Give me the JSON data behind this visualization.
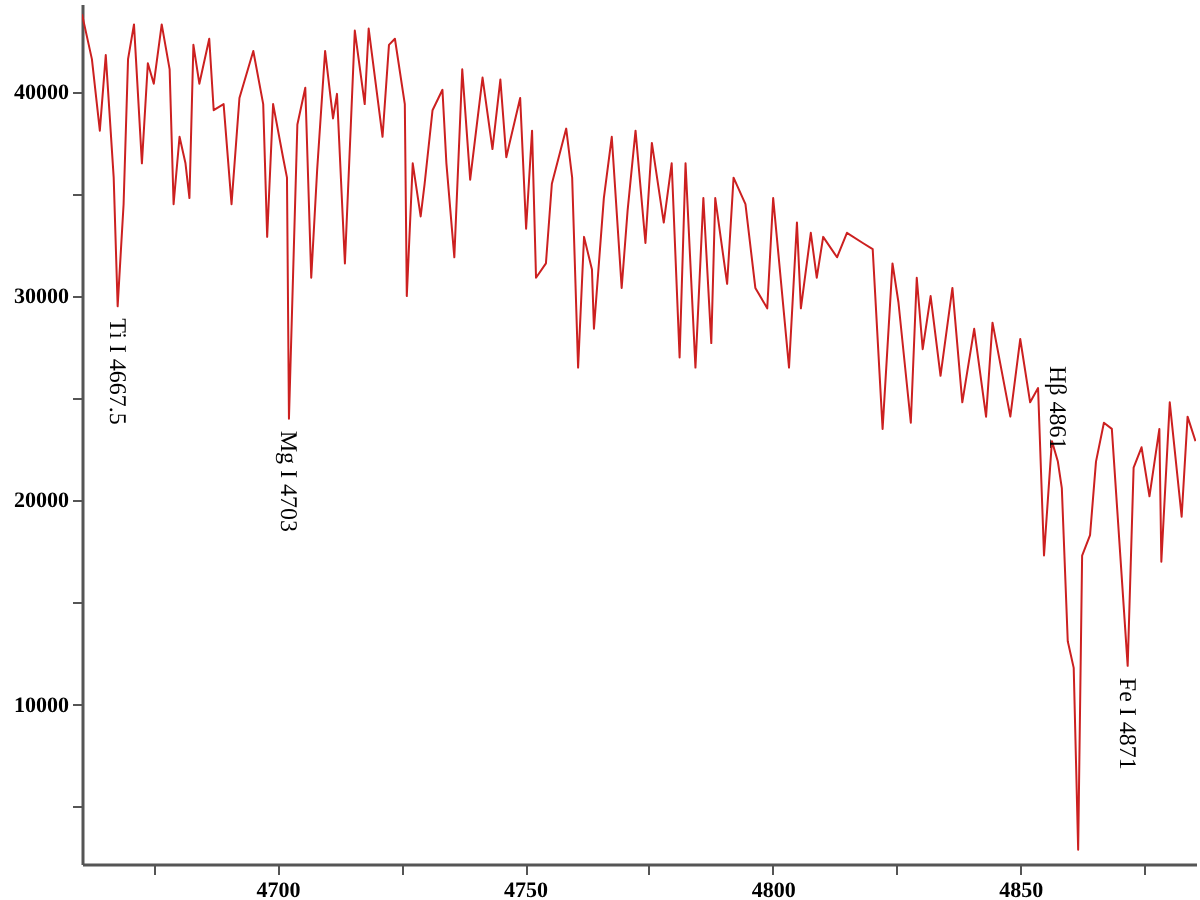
{
  "chart_data": {
    "type": "line",
    "x": [
      4660.5,
      4662.5,
      4664.1,
      4665.3,
      4666.9,
      4667.7,
      4668.9,
      4669.8,
      4671.0,
      4672.6,
      4673.8,
      4675.0,
      4676.6,
      4678.2,
      4679.0,
      4680.2,
      4681.4,
      4682.2,
      4683.0,
      4684.2,
      4686.2,
      4687.1,
      4689.1,
      4690.7,
      4692.3,
      4695.1,
      4697.1,
      4697.9,
      4699.1,
      4701.1,
      4701.9,
      4702.3,
      4704.0,
      4705.6,
      4706.8,
      4708.0,
      4709.6,
      4711.2,
      4712.0,
      4713.6,
      4714.8,
      4715.6,
      4717.6,
      4718.4,
      4721.2,
      4722.5,
      4723.7,
      4725.7,
      4726.1,
      4727.3,
      4728.9,
      4729.7,
      4731.3,
      4733.3,
      4734.1,
      4735.7,
      4737.3,
      4738.9,
      4741.4,
      4743.4,
      4745.0,
      4746.2,
      4749.0,
      4750.2,
      4751.4,
      4752.2,
      4754.2,
      4755.4,
      4758.3,
      4759.5,
      4760.7,
      4761.9,
      4763.5,
      4763.9,
      4765.9,
      4767.5,
      4769.5,
      4770.7,
      4772.3,
      4774.3,
      4775.6,
      4778.0,
      4779.6,
      4781.2,
      4782.4,
      4784.4,
      4786.0,
      4787.6,
      4788.4,
      4790.8,
      4792.1,
      4794.5,
      4796.5,
      4798.9,
      4800.1,
      4803.3,
      4804.9,
      4805.7,
      4807.7,
      4808.9,
      4810.2,
      4813.0,
      4815.0,
      4818.2,
      4820.2,
      4822.2,
      4824.2,
      4825.4,
      4827.9,
      4829.1,
      4830.3,
      4831.9,
      4833.9,
      4836.3,
      4838.3,
      4840.7,
      4843.1,
      4844.4,
      4848.0,
      4850.0,
      4852.0,
      4853.6,
      4854.8,
      4856.4,
      4857.6,
      4858.4,
      4859.6,
      4860.8,
      4861.7,
      4862.5,
      4864.1,
      4865.3,
      4866.9,
      4868.5,
      4871.7,
      4872.9,
      4874.5,
      4876.1,
      4878.1,
      4878.5,
      4880.2,
      4882.6,
      4883.8,
      4885.4
    ],
    "series": [
      {
        "color": "#cc2020",
        "values": [
          43800,
          41600,
          38100,
          41800,
          35800,
          29500,
          34500,
          41600,
          43300,
          36500,
          41400,
          40400,
          43300,
          41100,
          34500,
          37800,
          36500,
          34800,
          42300,
          40400,
          42600,
          39100,
          39400,
          34500,
          39700,
          42000,
          39400,
          32900,
          39400,
          36800,
          35800,
          24000,
          38400,
          40200,
          30900,
          36200,
          42000,
          38700,
          39900,
          31600,
          38400,
          43000,
          39400,
          43100,
          37800,
          42300,
          42600,
          39400,
          30000,
          36500,
          33900,
          35500,
          39100,
          40100,
          36500,
          31900,
          41100,
          35700,
          40700,
          37200,
          40600,
          36800,
          39700,
          33300,
          38100,
          30900,
          31600,
          35500,
          38200,
          35800,
          26500,
          32900,
          31300,
          28400,
          34800,
          37800,
          30400,
          34200,
          38100,
          32600,
          37500,
          33600,
          36500,
          27000,
          36500,
          26500,
          34800,
          27700,
          34800,
          30600,
          35800,
          34500,
          30400,
          29400,
          34800,
          26500,
          33600,
          29400,
          33100,
          30900,
          32900,
          31900,
          33100,
          32600,
          32300,
          23500,
          31600,
          29700,
          23800,
          30900,
          27400,
          30000,
          26100,
          30400,
          24800,
          28400,
          24100,
          28700,
          24100,
          27900,
          24800,
          25500,
          17300,
          22900,
          21900,
          20600,
          13100,
          11800,
          2900,
          17300,
          18300,
          21900,
          23800,
          23500,
          11900,
          21600,
          22600,
          20200,
          23500,
          17000,
          24800,
          19200,
          24100,
          22900
        ]
      }
    ],
    "xlim": [
      4660.5,
      4885.5
    ],
    "ylim": [
      2200,
      44300
    ],
    "xticks": [
      {
        "value": 4675,
        "label": null
      },
      4700,
      {
        "value": 4725,
        "label": null
      },
      4750,
      {
        "value": 4775,
        "label": null
      },
      4800,
      {
        "value": 4825,
        "label": null
      },
      4850,
      {
        "value": 4875,
        "label": null
      }
    ],
    "yticks": [
      {
        "value": 5000,
        "label": null
      },
      10000,
      {
        "value": 15000,
        "label": null
      },
      20000,
      {
        "value": 25000,
        "label": null
      },
      30000,
      {
        "value": 35000,
        "label": null
      },
      40000
    ],
    "grid": false,
    "annotations": [
      {
        "text": "Ti I 4667.5",
        "x": 4667.7,
        "y": 29500
      },
      {
        "text": "Mg I 4703",
        "x": 4702.3,
        "y": 24000
      },
      {
        "text": "Hβ 4861",
        "x": 4857.6,
        "y": 21900
      },
      {
        "text": "Fe I 4871",
        "x": 4871.7,
        "y": 11900
      }
    ]
  }
}
